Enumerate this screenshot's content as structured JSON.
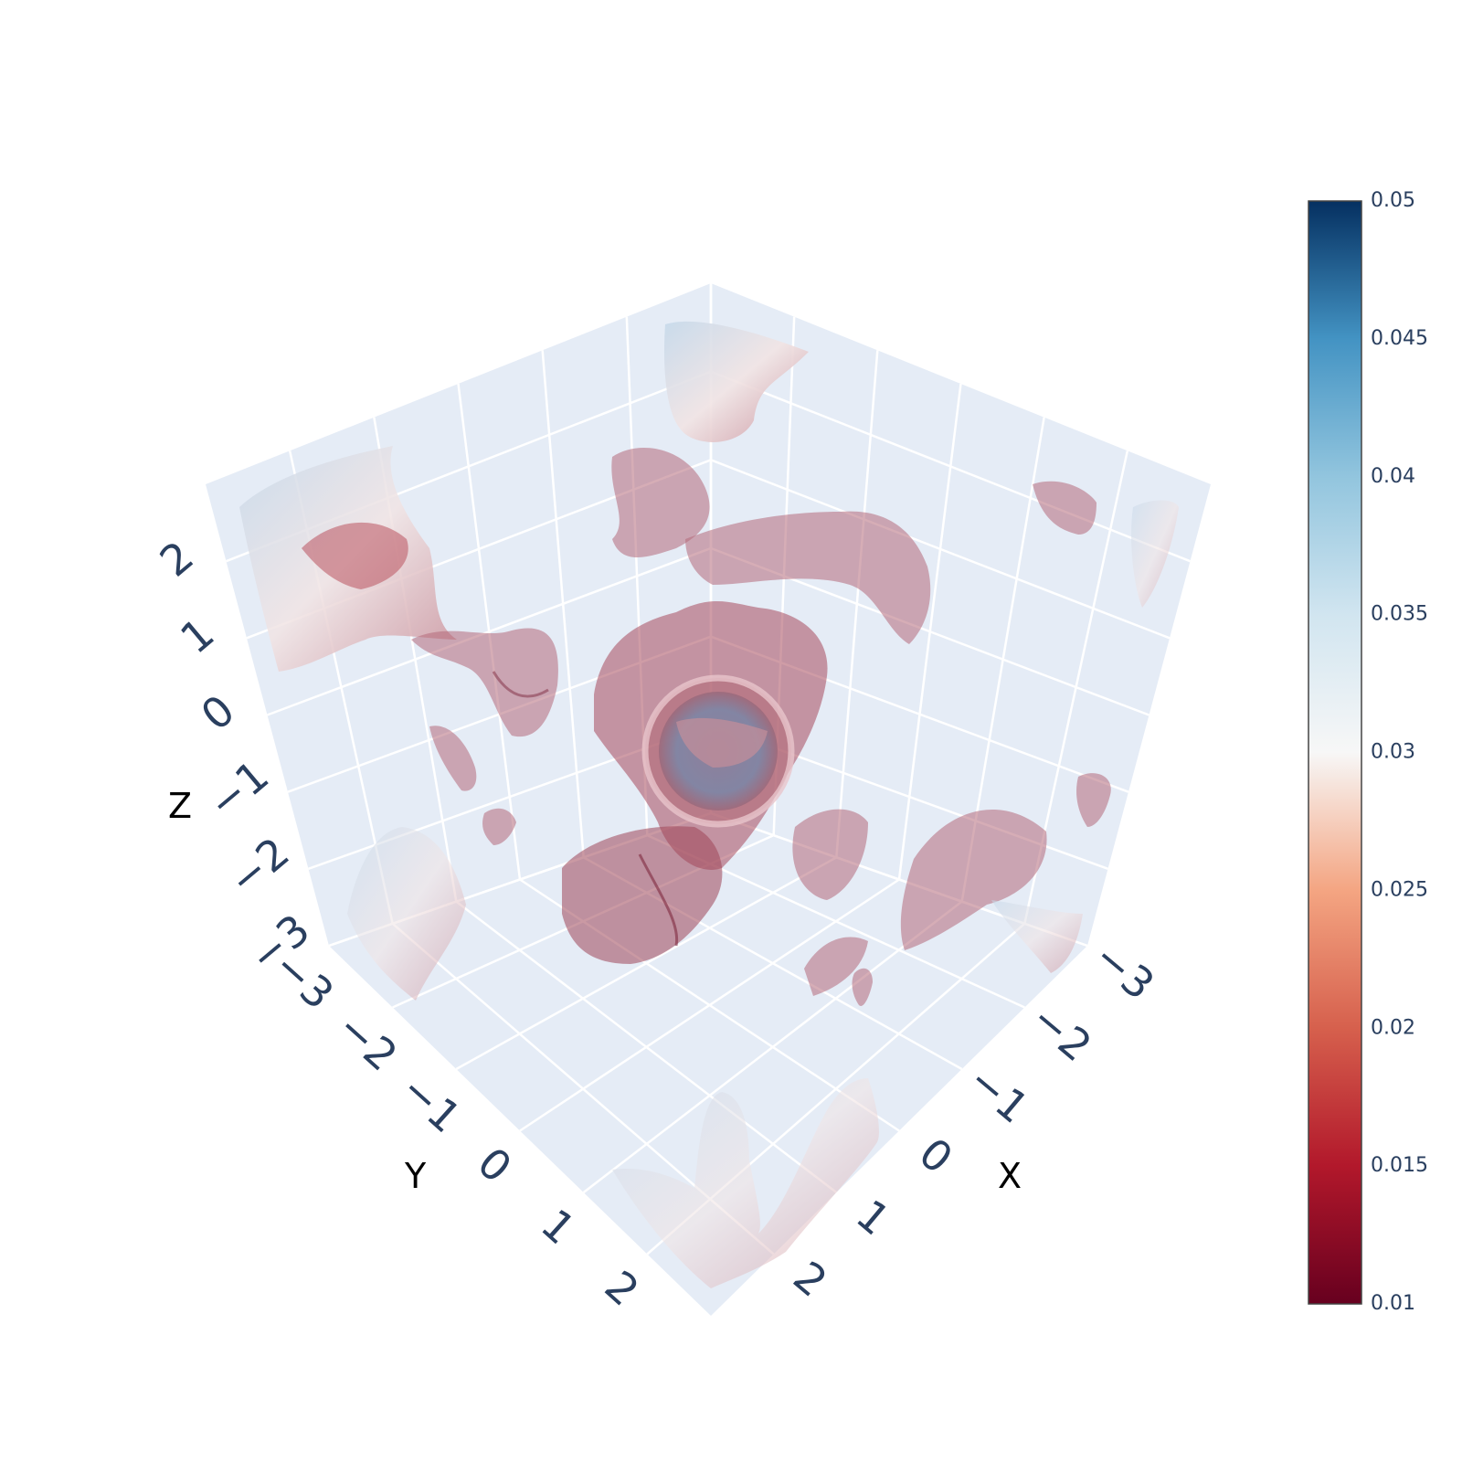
{
  "chart_data": {
    "type": "isosurface",
    "axes": {
      "x": {
        "title": "X",
        "ticks": [
          "−3",
          "−2",
          "−1",
          "0",
          "1",
          "2"
        ],
        "range": [
          -3,
          3
        ]
      },
      "y": {
        "title": "Y",
        "ticks": [
          "−3",
          "−2",
          "−1",
          "0",
          "1",
          "2"
        ],
        "range": [
          -3,
          3
        ]
      },
      "z": {
        "title": "Z",
        "ticks": [
          "−3",
          "−2",
          "−1",
          "0",
          "1",
          "2"
        ],
        "range": [
          -3,
          3
        ]
      }
    },
    "colorscale": "RdBu",
    "colorbar": {
      "min": 0.01,
      "max": 0.05,
      "ticks": [
        "0.01",
        "0.015",
        "0.02",
        "0.025",
        "0.03",
        "0.035",
        "0.04",
        "0.045",
        "0.05"
      ],
      "position": "right"
    },
    "grid": true,
    "colors": {
      "scene_bg": "#e5ecf6",
      "grid": "#ffffff",
      "surface": "#b56a7a",
      "surface_dark": "#7e2a3f"
    }
  }
}
